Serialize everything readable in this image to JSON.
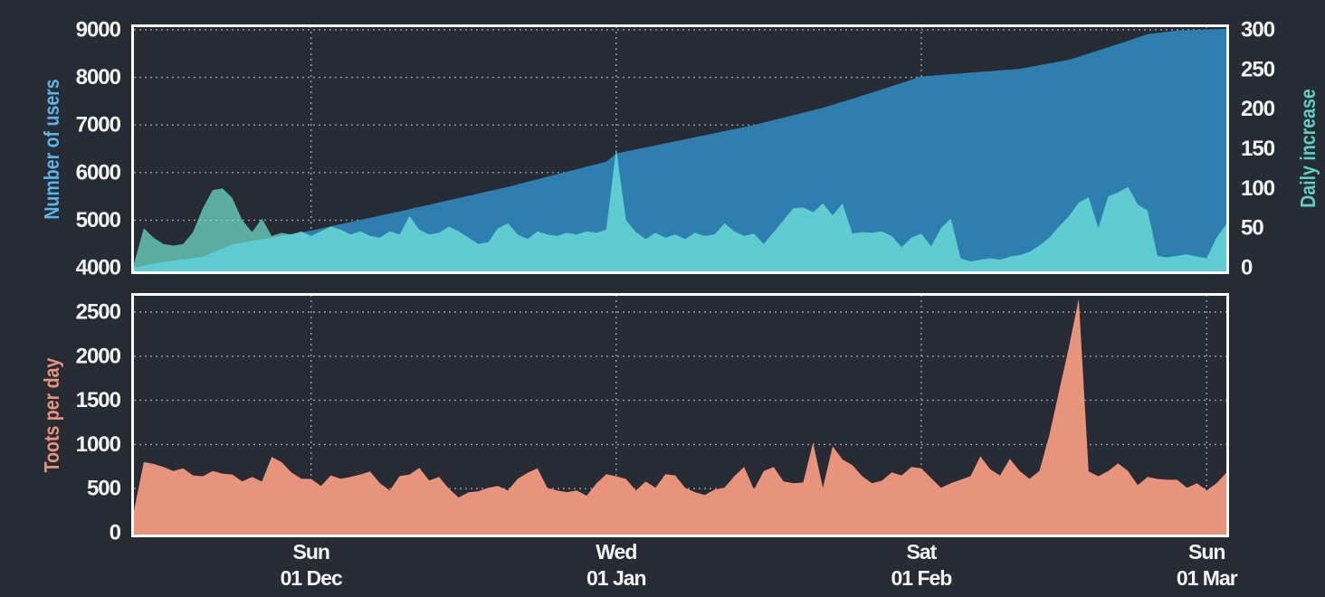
{
  "colors": {
    "background": "#272b34",
    "frame": "#ffffff",
    "grid": "#aaafb6",
    "tick_text": "#f4f4f4",
    "users_fill": "#2e7fb0",
    "daily_fill": "rgba(124,251,229,0.62)",
    "toots_fill": "#e8937b",
    "users_label_color": "#5bb4e5",
    "daily_label_color": "#5ecfc4",
    "toots_label_color": "#e8937b"
  },
  "labels": {
    "users_axis": "Number of users",
    "daily_axis": "Daily increase",
    "toots_axis": "Toots per day"
  },
  "xaxis": {
    "tick_labels": [
      {
        "line1": "Sun",
        "line2": "01 Dec",
        "day_index": 18
      },
      {
        "line1": "Wed",
        "line2": "01 Jan",
        "day_index": 49
      },
      {
        "line1": "Sat",
        "line2": "01 Feb",
        "day_index": 80
      },
      {
        "line1": "Sun",
        "line2": "01 Mar",
        "day_index": 109
      }
    ]
  },
  "chart_data": [
    {
      "id": "users",
      "type": "area",
      "panel": "top",
      "axis": "left",
      "name": "Number of users",
      "ylim": [
        4000,
        9000
      ],
      "yticks": [
        4000,
        5000,
        6000,
        7000,
        8000,
        9000
      ],
      "values": [
        3990,
        4045,
        4090,
        4118,
        4146,
        4174,
        4202,
        4230,
        4317,
        4403,
        4490,
        4526,
        4562,
        4599,
        4635,
        4671,
        4707,
        4744,
        4780,
        4825,
        4870,
        4915,
        4960,
        5005,
        5050,
        5095,
        5140,
        5185,
        5230,
        5277,
        5324,
        5371,
        5418,
        5465,
        5512,
        5559,
        5606,
        5653,
        5700,
        5753,
        5806,
        5859,
        5912,
        5965,
        6018,
        6071,
        6124,
        6177,
        6230,
        6400,
        6443,
        6486,
        6529,
        6572,
        6615,
        6658,
        6700,
        6743,
        6786,
        6829,
        6871,
        6914,
        6957,
        7000,
        7051,
        7103,
        7154,
        7206,
        7257,
        7309,
        7360,
        7424,
        7488,
        7552,
        7616,
        7680,
        7748,
        7816,
        7884,
        7952,
        8020,
        8036,
        8052,
        8068,
        8084,
        8100,
        8116,
        8132,
        8148,
        8164,
        8180,
        8218,
        8256,
        8294,
        8332,
        8370,
        8436,
        8502,
        8568,
        8634,
        8700,
        8770,
        8840,
        8910,
        8935,
        8960,
        8985,
        8993,
        9000,
        9007,
        9014,
        9020
      ]
    },
    {
      "id": "daily_increase",
      "type": "area",
      "panel": "top",
      "axis": "right",
      "name": "Daily increase",
      "ylim": [
        0,
        300
      ],
      "yticks": [
        0,
        50,
        100,
        150,
        200,
        250,
        300
      ],
      "values": [
        5,
        50,
        38,
        30,
        28,
        30,
        45,
        75,
        98,
        100,
        88,
        60,
        45,
        62,
        40,
        44,
        42,
        46,
        40,
        46,
        52,
        48,
        42,
        46,
        40,
        38,
        46,
        42,
        65,
        48,
        42,
        44,
        52,
        46,
        38,
        30,
        32,
        50,
        56,
        42,
        36,
        46,
        42,
        40,
        44,
        42,
        46,
        44,
        48,
        150,
        60,
        45,
        36,
        44,
        38,
        42,
        36,
        44,
        40,
        42,
        56,
        46,
        40,
        43,
        30,
        45,
        60,
        75,
        76,
        70,
        81,
        66,
        81,
        43,
        45,
        44,
        46,
        40,
        26,
        38,
        43,
        27,
        50,
        62,
        12,
        8,
        10,
        12,
        10,
        14,
        16,
        20,
        28,
        38,
        52,
        65,
        82,
        89,
        50,
        90,
        95,
        102,
        80,
        72,
        15,
        13,
        15,
        17,
        14,
        12,
        38,
        55
      ]
    },
    {
      "id": "toots_per_day",
      "type": "area",
      "panel": "bottom",
      "axis": "left",
      "name": "Toots per day",
      "ylim": [
        0,
        2650
      ],
      "yticks": [
        0,
        500,
        1000,
        1500,
        2000,
        2500
      ],
      "values": [
        250,
        800,
        780,
        745,
        700,
        730,
        650,
        640,
        700,
        670,
        660,
        582,
        632,
        580,
        860,
        800,
        683,
        612,
        610,
        530,
        650,
        612,
        632,
        660,
        694,
        560,
        480,
        643,
        660,
        735,
        592,
        632,
        500,
        400,
        459,
        470,
        510,
        530,
        480,
        612,
        680,
        730,
        510,
        480,
        460,
        480,
        420,
        560,
        663,
        640,
        610,
        480,
        582,
        510,
        663,
        650,
        510,
        460,
        428,
        490,
        510,
        640,
        745,
        490,
        700,
        745,
        582,
        560,
        570,
        1020,
        510,
        980,
        830,
        765,
        640,
        561,
        590,
        683,
        650,
        745,
        730,
        620,
        510,
        560,
        600,
        640,
        867,
        720,
        650,
        837,
        700,
        612,
        700,
        1100,
        1600,
        2100,
        2650,
        694,
        640,
        700,
        786,
        700,
        541,
        632,
        610,
        600,
        600,
        510,
        560,
        480,
        560,
        680
      ]
    }
  ]
}
